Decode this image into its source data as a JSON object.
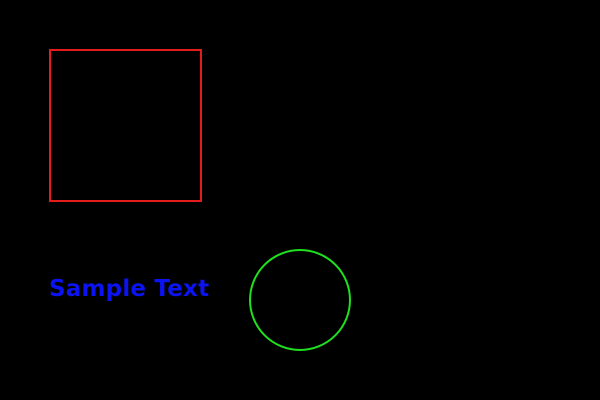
{
  "text": {
    "label": "Sample Text"
  },
  "colors": {
    "background": "#000000",
    "square_outline": "#e51c1c",
    "circle_outline": "#1ee01e",
    "text": "#0b14f0"
  }
}
